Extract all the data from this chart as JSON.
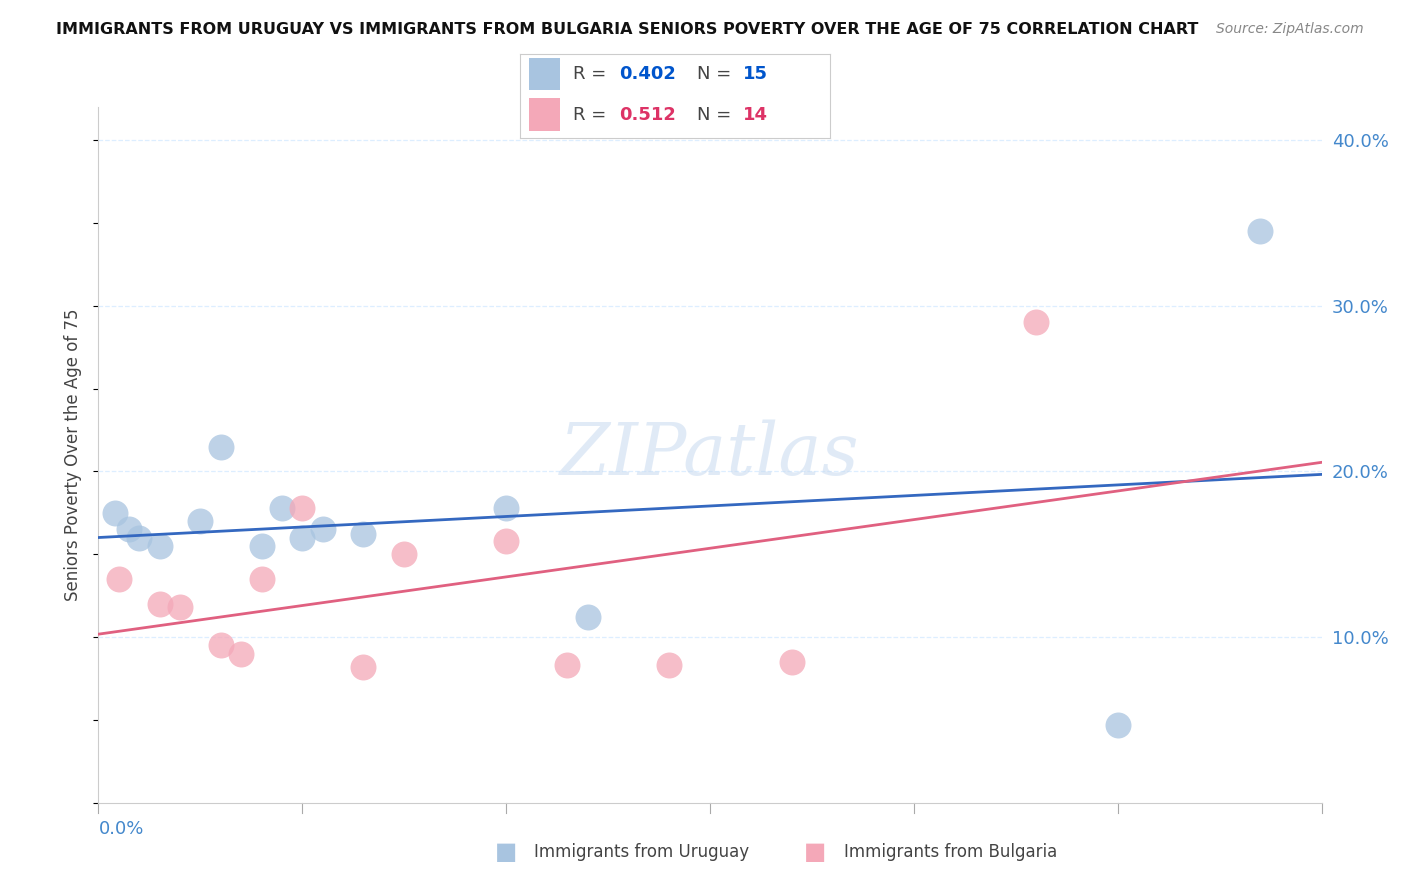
{
  "title": "IMMIGRANTS FROM URUGUAY VS IMMIGRANTS FROM BULGARIA SENIORS POVERTY OVER THE AGE OF 75 CORRELATION CHART",
  "source": "Source: ZipAtlas.com",
  "ylabel": "Seniors Poverty Over the Age of 75",
  "watermark": "ZIPatlas",
  "xlim": [
    0.0,
    0.06
  ],
  "ylim": [
    0.0,
    0.42
  ],
  "uruguay_R": 0.402,
  "uruguay_N": 15,
  "bulgaria_R": 0.512,
  "bulgaria_N": 14,
  "uruguay_color": "#a8c4e0",
  "bulgaria_color": "#f4a8b8",
  "uruguay_line_color": "#3468c0",
  "bulgaria_line_color": "#e06080",
  "axis_color": "#4488cc",
  "legend_blue_color": "#0055cc",
  "legend_pink_color": "#dd3366",
  "grid_color": "#ddeeff",
  "uruguay_x": [
    0.0008,
    0.0015,
    0.002,
    0.003,
    0.005,
    0.006,
    0.008,
    0.009,
    0.01,
    0.011,
    0.013,
    0.02,
    0.024,
    0.05,
    0.057
  ],
  "uruguay_y": [
    0.175,
    0.165,
    0.16,
    0.155,
    0.17,
    0.215,
    0.155,
    0.178,
    0.16,
    0.165,
    0.162,
    0.178,
    0.112,
    0.047,
    0.345
  ],
  "bulgaria_x": [
    0.001,
    0.003,
    0.004,
    0.006,
    0.007,
    0.008,
    0.01,
    0.013,
    0.015,
    0.02,
    0.023,
    0.028,
    0.034,
    0.046
  ],
  "bulgaria_y": [
    0.135,
    0.12,
    0.118,
    0.095,
    0.09,
    0.135,
    0.178,
    0.082,
    0.15,
    0.158,
    0.083,
    0.083,
    0.085,
    0.29
  ]
}
